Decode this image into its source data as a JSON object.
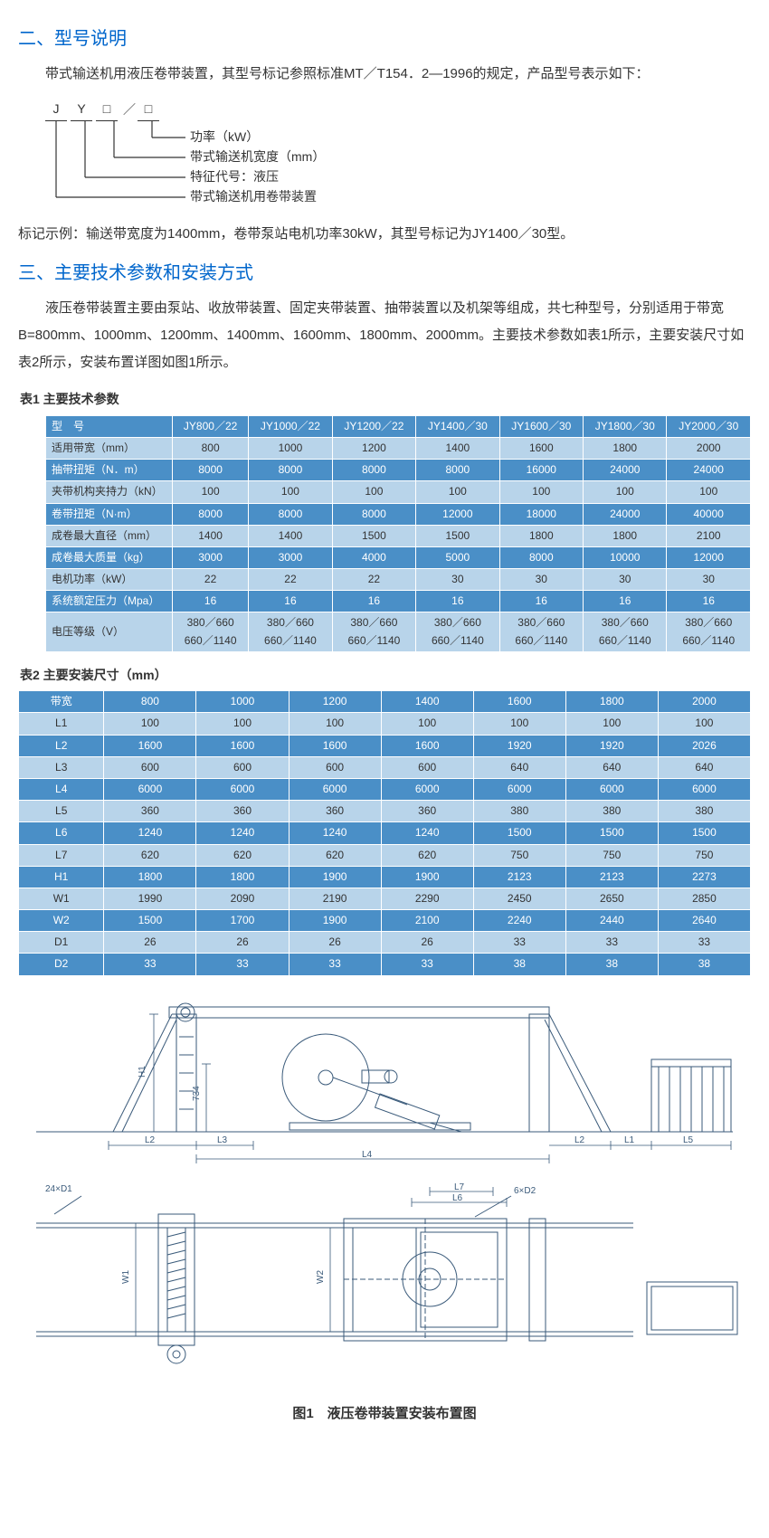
{
  "section2": {
    "heading": "二、型号说明",
    "para1": "带式输送机用液压卷带装置，其型号标记参照标准MT／T154．2—1996的规定，产品型号表示如下：",
    "code": {
      "boxes": [
        "J",
        "Y",
        "□",
        "／",
        "□"
      ],
      "legend": [
        "功率（kW）",
        "带式输送机宽度（mm）",
        "特征代号：液压",
        "带式输送机用卷带装置"
      ]
    },
    "example": "标记示例：输送带宽度为1400mm，卷带泵站电机功率30kW，其型号标记为JY1400／30型。"
  },
  "section3": {
    "heading": "三、主要技术参数和安装方式",
    "para1": "液压卷带装置主要由泵站、收放带装置、固定夹带装置、抽带装置以及机架等组成，共七种型号，分别适用于带宽B=800mm、1000mm、1200mm、1400mm、1600mm、1800mm、2000mm。主要技术参数如表1所示，主要安装尺寸如表2所示，安装布置详图如图1所示。"
  },
  "table1": {
    "caption": "表1 主要技术参数",
    "header": [
      "型　号",
      "JY800／22",
      "JY1000／22",
      "JY1200／22",
      "JY1400／30",
      "JY1600／30",
      "JY1800／30",
      "JY2000／30"
    ],
    "rows": [
      {
        "style": "light",
        "cells": [
          "适用带宽（mm）",
          "800",
          "1000",
          "1200",
          "1400",
          "1600",
          "1800",
          "2000"
        ]
      },
      {
        "style": "dark",
        "cells": [
          "抽带扭矩（N．m）",
          "8000",
          "8000",
          "8000",
          "8000",
          "16000",
          "24000",
          "24000"
        ]
      },
      {
        "style": "light",
        "cells": [
          "夹带机构夹持力（kN）",
          "100",
          "100",
          "100",
          "100",
          "100",
          "100",
          "100"
        ]
      },
      {
        "style": "dark",
        "cells": [
          "卷带扭矩（N·m）",
          "8000",
          "8000",
          "8000",
          "12000",
          "18000",
          "24000",
          "40000"
        ]
      },
      {
        "style": "light",
        "cells": [
          "成卷最大直径（mm）",
          "1400",
          "1400",
          "1500",
          "1500",
          "1800",
          "1800",
          "2100"
        ]
      },
      {
        "style": "dark",
        "cells": [
          "成卷最大质量（kg）",
          "3000",
          "3000",
          "4000",
          "5000",
          "8000",
          "10000",
          "12000"
        ]
      },
      {
        "style": "light",
        "cells": [
          "电机功率（kW）",
          "22",
          "22",
          "22",
          "30",
          "30",
          "30",
          "30"
        ]
      },
      {
        "style": "dark",
        "cells": [
          "系统额定压力（Mpa）",
          "16",
          "16",
          "16",
          "16",
          "16",
          "16",
          "16"
        ]
      },
      {
        "style": "light",
        "cells": [
          "电压等级（V）",
          "380／660\n660／1140",
          "380／660\n660／1140",
          "380／660\n660／1140",
          "380／660\n660／1140",
          "380／660\n660／1140",
          "380／660\n660／1140",
          "380／660\n660／1140"
        ]
      }
    ],
    "colors": {
      "dark": "#4a8fc7",
      "light": "#b8d4ea",
      "border": "#ffffff",
      "darkText": "#ffffff",
      "lightText": "#333333"
    }
  },
  "table2": {
    "caption": "表2 主要安装尺寸（mm）",
    "rows": [
      {
        "style": "dark",
        "cells": [
          "带宽",
          "800",
          "1000",
          "1200",
          "1400",
          "1600",
          "1800",
          "2000"
        ]
      },
      {
        "style": "light",
        "cells": [
          "L1",
          "100",
          "100",
          "100",
          "100",
          "100",
          "100",
          "100"
        ]
      },
      {
        "style": "dark",
        "cells": [
          "L2",
          "1600",
          "1600",
          "1600",
          "1600",
          "1920",
          "1920",
          "2026"
        ]
      },
      {
        "style": "light",
        "cells": [
          "L3",
          "600",
          "600",
          "600",
          "600",
          "640",
          "640",
          "640"
        ]
      },
      {
        "style": "dark",
        "cells": [
          "L4",
          "6000",
          "6000",
          "6000",
          "6000",
          "6000",
          "6000",
          "6000"
        ]
      },
      {
        "style": "light",
        "cells": [
          "L5",
          "360",
          "360",
          "360",
          "360",
          "380",
          "380",
          "380"
        ]
      },
      {
        "style": "dark",
        "cells": [
          "L6",
          "1240",
          "1240",
          "1240",
          "1240",
          "1500",
          "1500",
          "1500"
        ]
      },
      {
        "style": "light",
        "cells": [
          "L7",
          "620",
          "620",
          "620",
          "620",
          "750",
          "750",
          "750"
        ]
      },
      {
        "style": "dark",
        "cells": [
          "H1",
          "1800",
          "1800",
          "1900",
          "1900",
          "2123",
          "2123",
          "2273"
        ]
      },
      {
        "style": "light",
        "cells": [
          "W1",
          "1990",
          "2090",
          "2190",
          "2290",
          "2450",
          "2650",
          "2850"
        ]
      },
      {
        "style": "dark",
        "cells": [
          "W2",
          "1500",
          "1700",
          "1900",
          "2100",
          "2240",
          "2440",
          "2640"
        ]
      },
      {
        "style": "light",
        "cells": [
          "D1",
          "26",
          "26",
          "26",
          "26",
          "33",
          "33",
          "33"
        ]
      },
      {
        "style": "dark",
        "cells": [
          "D2",
          "33",
          "33",
          "33",
          "33",
          "38",
          "38",
          "38"
        ]
      }
    ]
  },
  "figure1": {
    "caption": "图1　液压卷带装置安装布置图",
    "side_labels": [
      "L1",
      "L2",
      "L3",
      "L4",
      "L5",
      "L6",
      "L7",
      "H1",
      "W1",
      "W2"
    ],
    "bolt_labels": [
      "24×D1",
      "6×D2"
    ],
    "dim_label_734": "734",
    "stroke": "#3a5a7a",
    "stroke_width": 1
  },
  "colors": {
    "heading": "#0066cc",
    "text": "#333333",
    "background": "#ffffff"
  }
}
